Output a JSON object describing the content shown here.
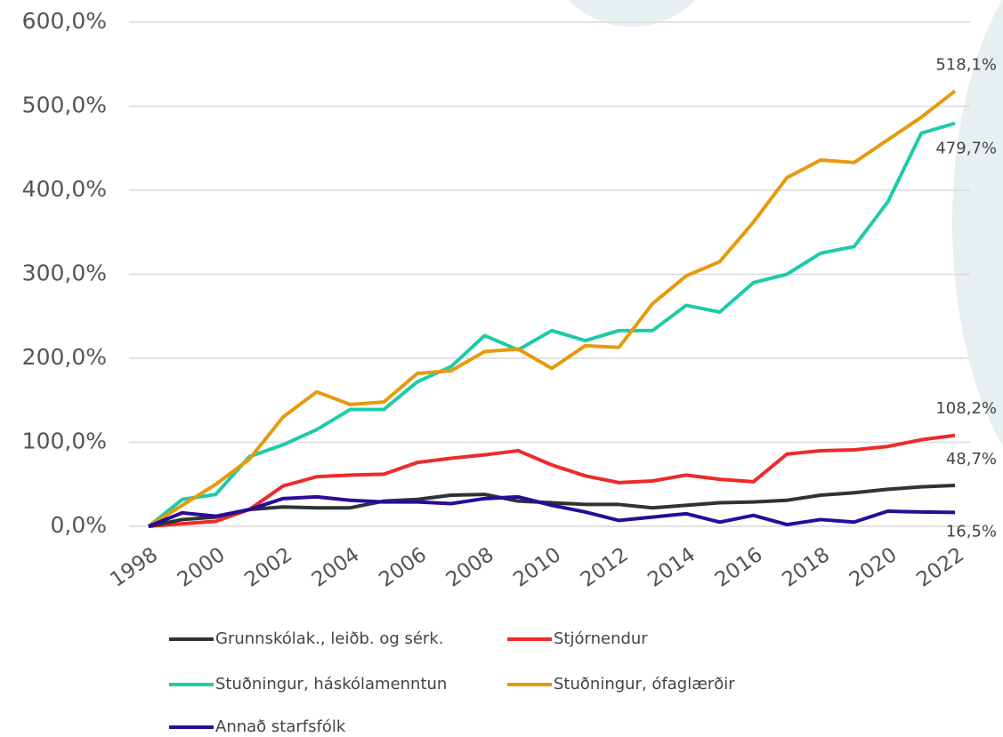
{
  "chart_data": {
    "type": "line",
    "x": [
      1998,
      1999,
      2000,
      2001,
      2002,
      2003,
      2004,
      2005,
      2006,
      2007,
      2008,
      2009,
      2010,
      2011,
      2012,
      2013,
      2014,
      2015,
      2016,
      2017,
      2018,
      2019,
      2020,
      2021,
      2022
    ],
    "series": [
      {
        "name": "Grunnskólak., leiðb. og sérk.",
        "color": "#2e3336",
        "values": [
          0,
          8,
          11,
          20,
          23,
          22,
          22,
          30,
          32,
          37,
          38,
          30,
          28,
          26,
          26,
          22,
          25,
          28,
          29,
          31,
          37,
          40,
          44,
          47,
          48.7
        ],
        "value_labels": [
          null,
          null,
          null,
          null,
          null,
          null,
          null,
          null,
          null,
          null,
          null,
          null,
          null,
          null,
          null,
          null,
          null,
          null,
          null,
          null,
          null,
          null,
          null,
          null,
          "48,7%"
        ]
      },
      {
        "name": "Stjórnendur",
        "color": "#ee2a2a",
        "values": [
          0,
          3,
          6,
          20,
          48,
          59,
          61,
          62,
          76,
          81,
          85,
          90,
          73,
          60,
          52,
          54,
          61,
          56,
          53,
          86,
          90,
          91,
          95,
          103,
          108.2
        ],
        "value_labels": [
          null,
          null,
          null,
          null,
          null,
          null,
          null,
          null,
          null,
          null,
          null,
          null,
          null,
          null,
          null,
          null,
          null,
          null,
          null,
          null,
          null,
          null,
          null,
          null,
          "108,2%"
        ]
      },
      {
        "name": "Stuðningur, háskólamenntun",
        "color": "#1ecba9",
        "values": [
          0,
          32,
          38,
          83,
          97,
          115,
          139,
          139,
          172,
          190,
          227,
          210,
          233,
          221,
          233,
          233,
          263,
          255,
          290,
          300,
          325,
          333,
          386,
          468,
          479.7
        ],
        "value_labels": [
          null,
          null,
          null,
          null,
          null,
          null,
          null,
          null,
          null,
          null,
          null,
          null,
          null,
          null,
          null,
          null,
          null,
          null,
          null,
          null,
          null,
          null,
          null,
          null,
          "479,7%"
        ]
      },
      {
        "name": "Stuðningur, ófaglærðir",
        "color": "#e69a0c",
        "values": [
          0,
          25,
          50,
          80,
          130,
          160,
          145,
          148,
          182,
          185,
          208,
          211,
          188,
          215,
          213,
          265,
          298,
          315,
          362,
          415,
          436,
          433,
          460,
          487,
          518.1
        ],
        "value_labels": [
          null,
          null,
          null,
          null,
          null,
          null,
          null,
          null,
          null,
          null,
          null,
          null,
          null,
          null,
          null,
          null,
          null,
          null,
          null,
          null,
          null,
          null,
          null,
          null,
          "518,1%"
        ]
      },
      {
        "name": "Annað starfsfólk",
        "color": "#2a0a9a",
        "values": [
          0,
          16,
          12,
          20,
          33,
          35,
          31,
          29,
          29,
          27,
          33,
          35,
          25,
          17,
          7,
          11,
          15,
          5,
          13,
          2,
          8,
          5,
          18,
          17,
          16.5
        ],
        "value_labels": [
          null,
          null,
          null,
          null,
          null,
          null,
          null,
          null,
          null,
          null,
          null,
          null,
          null,
          null,
          null,
          null,
          null,
          null,
          null,
          null,
          null,
          null,
          null,
          null,
          "16,5%"
        ]
      }
    ],
    "xlim": [
      1998,
      2022
    ],
    "xticks": [
      1998,
      2000,
      2002,
      2004,
      2006,
      2008,
      2010,
      2012,
      2014,
      2016,
      2018,
      2020,
      2022
    ],
    "ylim": [
      0,
      600
    ],
    "yticks": [
      {
        "value": 0,
        "label": "0,0%"
      },
      {
        "value": 100,
        "label": "100,0%"
      },
      {
        "value": 200,
        "label": "200,0%"
      },
      {
        "value": 300,
        "label": "300,0%"
      },
      {
        "value": 400,
        "label": "400,0%"
      },
      {
        "value": 500,
        "label": "500,0%"
      },
      {
        "value": 600,
        "label": "600,0%"
      }
    ],
    "grid": true,
    "legend": "bottom"
  }
}
